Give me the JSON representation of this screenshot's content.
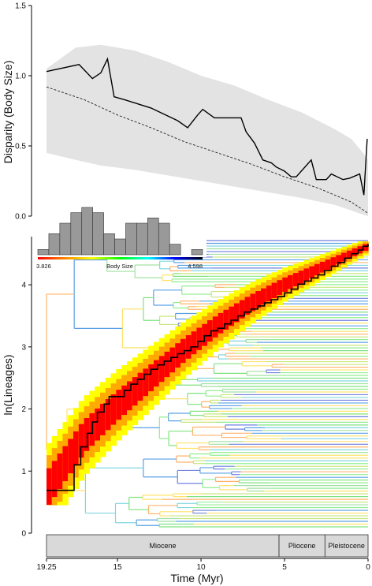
{
  "chart_data": [
    {
      "type": "line",
      "ylabel": "Disparity (Body Size)",
      "xlim": [
        19.25,
        0
      ],
      "ylim": [
        0,
        1.5
      ],
      "yticks": [
        "0.0",
        "0.5",
        "1.0",
        "1.5"
      ],
      "series": [
        {
          "style": "solid",
          "x": [
            19.25,
            17.3,
            16.5,
            16.0,
            15.6,
            15.2,
            14.6,
            13.0,
            11.4,
            10.8,
            10.2,
            9.9,
            9.2,
            7.6,
            7.3,
            6.8,
            6.3,
            5.8,
            5.5,
            5.0,
            4.6,
            4.3,
            3.4,
            3.1,
            2.5,
            2.2,
            1.5,
            1.1,
            0.5,
            0.25,
            0.05
          ],
          "y": [
            1.03,
            1.08,
            0.98,
            1.02,
            1.12,
            0.85,
            0.83,
            0.77,
            0.68,
            0.63,
            0.72,
            0.76,
            0.7,
            0.7,
            0.6,
            0.52,
            0.4,
            0.38,
            0.35,
            0.32,
            0.28,
            0.28,
            0.4,
            0.26,
            0.26,
            0.3,
            0.26,
            0.27,
            0.3,
            0.15,
            0.55
          ]
        },
        {
          "style": "dashed",
          "x": [
            19.25,
            17,
            15,
            13,
            11,
            9,
            7,
            5,
            3,
            1,
            0
          ],
          "y": [
            0.92,
            0.83,
            0.72,
            0.63,
            0.53,
            0.45,
            0.37,
            0.28,
            0.2,
            0.1,
            0.02
          ]
        }
      ],
      "band": {
        "x": [
          19.25,
          17.5,
          16.0,
          14.0,
          12.0,
          10.0,
          8.0,
          6.0,
          4.0,
          2.0,
          1.0,
          0.3,
          0
        ],
        "upper": [
          1.05,
          1.2,
          1.22,
          1.18,
          1.1,
          1.0,
          0.93,
          0.83,
          0.74,
          0.62,
          0.55,
          0.45,
          0.4
        ],
        "lower": [
          0.45,
          0.4,
          0.36,
          0.33,
          0.29,
          0.25,
          0.21,
          0.17,
          0.13,
          0.08,
          0.04,
          0.01,
          0.0
        ]
      }
    },
    {
      "type": "line",
      "xlabel": "Time (Myr)",
      "ylabel": "ln(Lineages)",
      "xlim": [
        19.25,
        0
      ],
      "ylim": [
        0,
        4.7
      ],
      "xticks": [
        "19.25",
        "15",
        "10",
        "5",
        "0"
      ],
      "yticks": [
        "0",
        "1",
        "2",
        "3",
        "4"
      ],
      "series": [
        {
          "style": "step",
          "x": [
            19.25,
            17.6,
            17.2,
            16.8,
            16.5,
            16.2,
            15.8,
            15.5,
            15.2,
            14.6,
            14.2,
            13.8,
            13.4,
            13.0,
            12.6,
            12.2,
            11.8,
            11.4,
            11.0,
            10.6,
            10.2,
            9.8,
            9.4,
            9.0,
            8.6,
            8.2,
            7.8,
            7.4,
            7.0,
            6.6,
            6.2,
            5.8,
            5.4,
            5.0,
            4.6,
            4.2,
            3.8,
            3.4,
            3.0,
            2.6,
            2.2,
            1.8,
            1.4,
            1.0,
            0.6,
            0.3,
            0
          ],
          "y": [
            0.69,
            1.1,
            1.39,
            1.61,
            1.79,
            1.95,
            2.08,
            2.2,
            2.2,
            2.3,
            2.4,
            2.48,
            2.56,
            2.64,
            2.71,
            2.77,
            2.83,
            2.89,
            2.94,
            3.0,
            3.09,
            3.18,
            3.26,
            3.3,
            3.37,
            3.43,
            3.5,
            3.56,
            3.61,
            3.66,
            3.71,
            3.76,
            3.81,
            3.87,
            3.93,
            4.01,
            4.06,
            4.11,
            4.16,
            4.23,
            4.3,
            4.36,
            4.43,
            4.5,
            4.56,
            4.62,
            4.66
          ]
        }
      ],
      "envelope_expected": {
        "x": [
          19.25,
          17,
          15,
          13,
          11,
          9,
          7,
          5,
          3,
          1,
          0
        ],
        "y": [
          0.69,
          1.55,
          2.05,
          2.5,
          2.95,
          3.35,
          3.7,
          4.0,
          4.25,
          4.5,
          4.62
        ]
      },
      "envelope_colors": [
        "#ffff00",
        "#ffaa00",
        "#ff0000"
      ],
      "tips": 105,
      "tree_color_scale": {
        "min_label": "3.826",
        "max_label": "4.598",
        "title": "Body Size",
        "colors": [
          "#ff0000",
          "#ff8c00",
          "#ffff00",
          "#00ff00",
          "#00ffff",
          "#0000ff",
          "#000000"
        ]
      },
      "histogram": {
        "counts": [
          1,
          4,
          6,
          8,
          9,
          8,
          4,
          3,
          6,
          6,
          7,
          6,
          2,
          0,
          1
        ]
      },
      "timescale": [
        {
          "label": "Miocene",
          "from": 19.25,
          "to": 5.33
        },
        {
          "label": "Pliocene",
          "from": 5.33,
          "to": 2.58
        },
        {
          "label": "Pleistocene",
          "from": 2.58,
          "to": 0
        }
      ]
    }
  ]
}
